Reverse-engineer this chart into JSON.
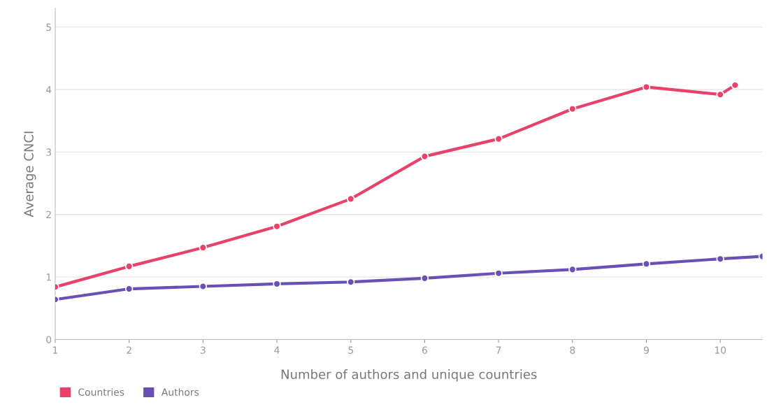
{
  "chart_data": {
    "type": "line",
    "xlabel": "Number of authors and unique countries",
    "ylabel": "Average CNCI",
    "series": [
      {
        "name": "Countries",
        "color": "#e8416a",
        "x": [
          1,
          2,
          3,
          4,
          5,
          6,
          7,
          8,
          9,
          10,
          10.2
        ],
        "values": [
          0.84,
          1.17,
          1.47,
          1.81,
          2.25,
          2.93,
          3.21,
          3.69,
          4.04,
          3.92,
          4.07
        ]
      },
      {
        "name": "Authors",
        "color": "#6a4fb5",
        "x": [
          1,
          2,
          3,
          4,
          5,
          6,
          7,
          8,
          9,
          10,
          10.57
        ],
        "values": [
          0.64,
          0.81,
          0.85,
          0.89,
          0.92,
          0.98,
          1.06,
          1.12,
          1.21,
          1.29,
          1.33
        ]
      }
    ],
    "xlim": [
      1,
      10.57
    ],
    "xticks": [
      1,
      2,
      3,
      4,
      5,
      6,
      7,
      8,
      9,
      10
    ],
    "ylim": [
      0,
      5.3
    ],
    "yticks": [
      0,
      1,
      2,
      3,
      4,
      5
    ],
    "grid": "y",
    "legend": "bottom left",
    "marker": "circle",
    "line_style": "solid"
  }
}
